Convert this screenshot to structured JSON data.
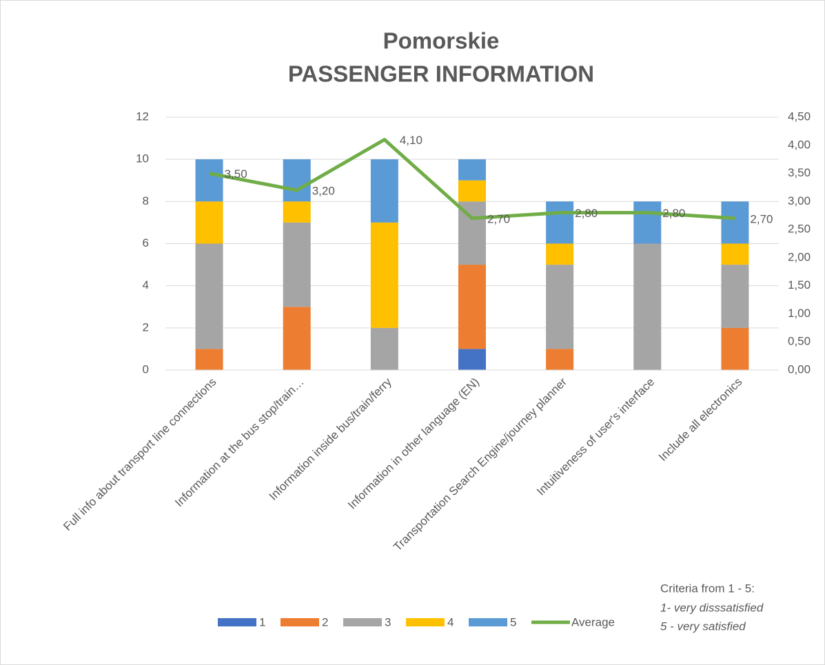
{
  "chart_data": {
    "type": "stacked_bar_line",
    "title": "Pomorskie",
    "subtitle": "PASSENGER INFORMATION",
    "categories": [
      "Full info about transport line connections",
      "Information at the bus stop/train…",
      "Information inside bus/train/ferry",
      "Information in other language (EN)",
      "Transportation Search Engine/journey planner",
      "Intuitiveness of user's interface",
      "Include all electronics"
    ],
    "series": [
      {
        "name": "1",
        "color": "#4472c4",
        "values": [
          0,
          0,
          0,
          1,
          0,
          0,
          0
        ]
      },
      {
        "name": "2",
        "color": "#ed7d31",
        "values": [
          1,
          3,
          0,
          4,
          1,
          0,
          2
        ]
      },
      {
        "name": "3",
        "color": "#a5a5a5",
        "values": [
          5,
          4,
          2,
          3,
          4,
          6,
          3
        ]
      },
      {
        "name": "4",
        "color": "#ffc000",
        "values": [
          2,
          1,
          5,
          1,
          1,
          0,
          1
        ]
      },
      {
        "name": "5",
        "color": "#5b9bd5",
        "values": [
          2,
          2,
          3,
          1,
          2,
          2,
          2
        ]
      },
      {
        "name": "Average",
        "color": "#70ad47",
        "axis": "y2",
        "values": [
          3.5,
          3.2,
          4.1,
          2.7,
          2.8,
          2.8,
          2.7
        ],
        "value_labels": [
          "3,50",
          "3,20",
          "4,10",
          "2,70",
          "2,80",
          "2,80",
          "2,70"
        ]
      }
    ],
    "ylim": [
      0,
      12
    ],
    "yticks": [
      0,
      2,
      4,
      6,
      8,
      10,
      12
    ],
    "y2lim": [
      0,
      4.5
    ],
    "y2ticks": [
      {
        "value": 0,
        "label": "0,00"
      },
      {
        "value": 0.5,
        "label": "0,50"
      },
      {
        "value": 1,
        "label": "1,00"
      },
      {
        "value": 1.5,
        "label": "1,50"
      },
      {
        "value": 2,
        "label": "2,00"
      },
      {
        "value": 2.5,
        "label": "2,50"
      },
      {
        "value": 3,
        "label": "3,00"
      },
      {
        "value": 3.5,
        "label": "3,50"
      },
      {
        "value": 4,
        "label": "4,00"
      },
      {
        "value": 4.5,
        "label": "4,50"
      }
    ],
    "grid": true,
    "legend": "bottom",
    "annotations": [
      "Criteria from 1 - 5:",
      "1- very disssatisfied",
      "5 - very satisfied"
    ]
  }
}
